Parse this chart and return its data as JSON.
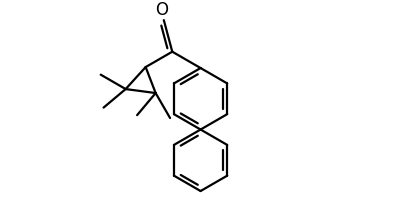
{
  "figure_width": 4.05,
  "figure_height": 2.01,
  "dpi": 100,
  "bg_color": "white",
  "line_color": "black",
  "line_width": 1.6,
  "font_size": 11,
  "xlim": [
    0,
    10.5
  ],
  "ylim": [
    0.5,
    5.5
  ]
}
